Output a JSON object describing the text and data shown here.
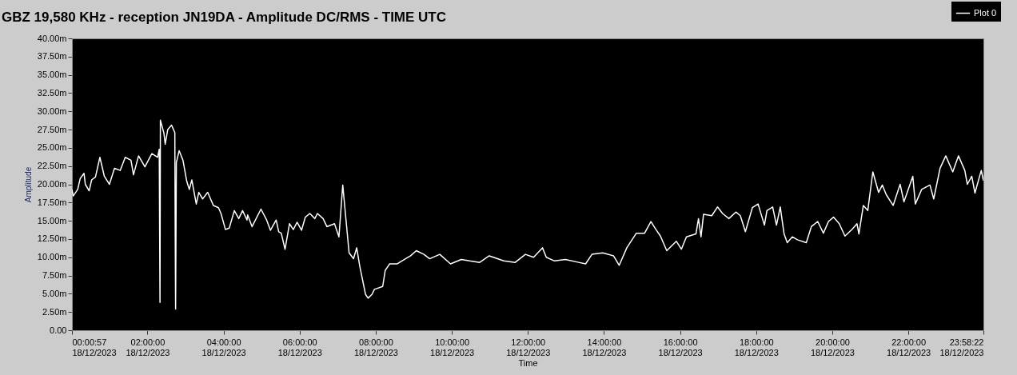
{
  "chart_data": {
    "type": "line",
    "title": "GBZ  19,580 KHz - reception JN19DA -  Amplitude DC/RMS   - TIME UTC",
    "xlabel": "Time",
    "ylabel": "Amplitude",
    "xlim": [
      "2023-12-18T00:00:57",
      "2023-12-18T23:58:22"
    ],
    "ylim": [
      0,
      40
    ],
    "xticks": [
      {
        "value": "2023-12-18T00:00:57",
        "label": "00:00:57\n18/12/2023"
      },
      {
        "value": "2023-12-18T02:00",
        "label": "02:00:00\n18/12/2023"
      },
      {
        "value": "2023-12-18T04:00",
        "label": "04:00:00\n18/12/2023"
      },
      {
        "value": "2023-12-18T06:00",
        "label": "06:00:00\n18/12/2023"
      },
      {
        "value": "2023-12-18T08:00",
        "label": "08:00:00\n18/12/2023"
      },
      {
        "value": "2023-12-18T10:00",
        "label": "10:00:00\n18/12/2023"
      },
      {
        "value": "2023-12-18T12:00",
        "label": "12:00:00\n18/12/2023"
      },
      {
        "value": "2023-12-18T14:00",
        "label": "14:00:00\n18/12/2023"
      },
      {
        "value": "2023-12-18T16:00",
        "label": "16:00:00\n18/12/2023"
      },
      {
        "value": "2023-12-18T18:00",
        "label": "18:00:00\n18/12/2023"
      },
      {
        "value": "2023-12-18T20:00",
        "label": "20:00:00\n18/12/2023"
      },
      {
        "value": "2023-12-18T22:00",
        "label": "22:00:00\n18/12/2023"
      },
      {
        "value": "2023-12-18T23:58:22",
        "label": "23:58:22\n18/12/2023"
      }
    ],
    "yticks": [
      {
        "value": 0,
        "label": "0.00"
      },
      {
        "value": 2.5,
        "label": "2.50m"
      },
      {
        "value": 5,
        "label": "5.00m"
      },
      {
        "value": 7.5,
        "label": "7.50m"
      },
      {
        "value": 10,
        "label": "10.00m"
      },
      {
        "value": 12.5,
        "label": "12.50m"
      },
      {
        "value": 15,
        "label": "15.00m"
      },
      {
        "value": 17.5,
        "label": "17.50m"
      },
      {
        "value": 20,
        "label": "20.00m"
      },
      {
        "value": 22.5,
        "label": "22.50m"
      },
      {
        "value": 25,
        "label": "25.00m"
      },
      {
        "value": 27.5,
        "label": "27.50m"
      },
      {
        "value": 30,
        "label": "30.00m"
      },
      {
        "value": 32.5,
        "label": "32.50m"
      },
      {
        "value": 35,
        "label": "35.00m"
      },
      {
        "value": 37.5,
        "label": "37.50m"
      },
      {
        "value": 40,
        "label": "40.00m"
      }
    ],
    "grid": false,
    "legend": "top right",
    "marker": "none",
    "line_style": "solid",
    "series": [
      {
        "name": "Plot 0",
        "color": "#ffffff",
        "x": [
          "2023-12-18T00:00:57",
          "2023-12-18T00:03",
          "2023-12-18T00:10",
          "2023-12-18T00:14",
          "2023-12-18T00:20",
          "2023-12-18T00:22",
          "2023-12-18T00:28",
          "2023-12-18T00:32",
          "2023-12-18T00:38",
          "2023-12-18T00:45",
          "2023-12-18T00:52",
          "2023-12-18T01:00",
          "2023-12-18T01:08",
          "2023-12-18T01:17",
          "2023-12-18T01:25",
          "2023-12-18T01:34",
          "2023-12-18T01:38",
          "2023-12-18T01:46",
          "2023-12-18T01:56",
          "2023-12-18T02:07",
          "2023-12-18T02:16",
          "2023-12-18T02:18:36",
          "2023-12-18T02:19:12",
          "2023-12-18T02:19:48",
          "2023-12-18T02:20:24",
          "2023-12-18T02:26",
          "2023-12-18T02:28",
          "2023-12-18T02:32",
          "2023-12-18T02:38",
          "2023-12-18T02:43:12",
          "2023-12-18T02:43:48",
          "2023-12-18T02:44:24",
          "2023-12-18T02:45:36",
          "2023-12-18T02:50",
          "2023-12-18T02:56",
          "2023-12-18T03:02",
          "2023-12-18T03:06",
          "2023-12-18T03:10",
          "2023-12-18T03:17",
          "2023-12-18T03:21",
          "2023-12-18T03:27",
          "2023-12-18T03:35",
          "2023-12-18T03:44",
          "2023-12-18T03:52",
          "2023-12-18T03:56",
          "2023-12-18T04:03",
          "2023-12-18T04:09",
          "2023-12-18T04:17",
          "2023-12-18T04:24",
          "2023-12-18T04:30",
          "2023-12-18T04:37",
          "2023-12-18T04:38",
          "2023-12-18T04:45",
          "2023-12-18T04:59",
          "2023-12-18T05:08",
          "2023-12-18T05:14",
          "2023-12-18T05:23",
          "2023-12-18T05:27",
          "2023-12-18T05:31",
          "2023-12-18T05:37",
          "2023-12-18T05:44",
          "2023-12-18T05:50",
          "2023-12-18T05:56",
          "2023-12-18T06:03",
          "2023-12-18T06:09",
          "2023-12-18T06:16",
          "2023-12-18T06:24",
          "2023-12-18T06:28",
          "2023-12-18T06:37",
          "2023-12-18T06:43",
          "2023-12-18T06:55",
          "2023-12-18T07:02",
          "2023-12-18T07:08",
          "2023-12-18T07:11",
          "2023-12-18T07:18",
          "2023-12-18T07:25",
          "2023-12-18T07:30",
          "2023-12-18T07:35",
          "2023-12-18T07:44",
          "2023-12-18T07:48",
          "2023-12-18T07:54",
          "2023-12-18T07:58",
          "2023-12-18T08:11",
          "2023-12-18T08:15",
          "2023-12-18T08:22",
          "2023-12-18T08:34",
          "2023-12-18T08:47",
          "2023-12-18T08:55",
          "2023-12-18T09:04",
          "2023-12-18T09:16",
          "2023-12-18T09:25",
          "2023-12-18T09:41",
          "2023-12-18T09:58",
          "2023-12-18T10:15",
          "2023-12-18T10:28",
          "2023-12-18T10:44",
          "2023-12-18T10:59",
          "2023-12-18T11:22",
          "2023-12-18T11:40",
          "2023-12-18T11:56",
          "2023-12-18T12:09",
          "2023-12-18T12:23",
          "2023-12-18T12:29",
          "2023-12-18T12:42",
          "2023-12-18T12:59",
          "2023-12-18T13:20",
          "2023-12-18T13:31",
          "2023-12-18T13:41",
          "2023-12-18T13:58",
          "2023-12-18T14:15",
          "2023-12-18T14:24",
          "2023-12-18T14:36",
          "2023-12-18T14:51",
          "2023-12-18T15:04",
          "2023-12-18T15:14",
          "2023-12-18T15:22",
          "2023-12-18T15:29",
          "2023-12-18T15:39",
          "2023-12-18T15:54",
          "2023-12-18T16:02",
          "2023-12-18T16:10",
          "2023-12-18T16:25",
          "2023-12-18T16:29",
          "2023-12-18T16:33",
          "2023-12-18T16:37",
          "2023-12-18T16:50",
          "2023-12-18T16:59",
          "2023-12-18T17:07",
          "2023-12-18T17:17",
          "2023-12-18T17:28",
          "2023-12-18T17:35",
          "2023-12-18T17:43",
          "2023-12-18T17:54",
          "2023-12-18T18:03",
          "2023-12-18T18:13",
          "2023-12-18T18:17",
          "2023-12-18T18:26",
          "2023-12-18T18:32",
          "2023-12-18T18:38",
          "2023-12-18T18:44",
          "2023-12-18T18:49",
          "2023-12-18T18:57",
          "2023-12-18T19:05",
          "2023-12-18T19:19",
          "2023-12-18T19:27",
          "2023-12-18T19:37",
          "2023-12-18T19:46",
          "2023-12-18T19:54",
          "2023-12-18T20:02",
          "2023-12-18T20:11",
          "2023-12-18T20:20",
          "2023-12-18T20:31",
          "2023-12-18T20:39",
          "2023-12-18T20:42",
          "2023-12-18T20:49",
          "2023-12-18T20:56",
          "2023-12-18T21:04",
          "2023-12-18T21:13",
          "2023-12-18T21:19",
          "2023-12-18T21:25",
          "2023-12-18T21:36",
          "2023-12-18T21:47",
          "2023-12-18T21:53",
          "2023-12-18T22:07",
          "2023-12-18T22:11",
          "2023-12-18T22:21",
          "2023-12-18T22:34",
          "2023-12-18T22:40",
          "2023-12-18T22:50",
          "2023-12-18T22:59",
          "2023-12-18T23:10",
          "2023-12-18T23:19",
          "2023-12-18T23:29",
          "2023-12-18T23:33",
          "2023-12-18T23:40",
          "2023-12-18T23:45",
          "2023-12-18T23:52",
          "2023-12-18T23:55",
          "2023-12-18T23:58:20"
        ],
        "values": [
          19.3,
          18.4,
          19.3,
          20.8,
          21.5,
          20.0,
          19.1,
          20.6,
          21.0,
          23.7,
          21.1,
          20.0,
          22.2,
          21.9,
          23.7,
          23.3,
          21.3,
          23.9,
          22.4,
          24.2,
          23.7,
          24.8,
          13.8,
          3.8,
          28.8,
          27.0,
          25.5,
          27.5,
          28.1,
          27.1,
          12.9,
          2.9,
          23.0,
          24.6,
          23.3,
          20.4,
          19.3,
          20.6,
          17.3,
          18.9,
          18.0,
          18.9,
          17.1,
          16.8,
          16.0,
          13.8,
          14.0,
          16.4,
          15.3,
          16.4,
          15.1,
          15.8,
          14.2,
          16.6,
          15.1,
          13.7,
          15.1,
          13.5,
          13.3,
          11.1,
          14.6,
          13.8,
          14.8,
          13.7,
          15.5,
          16.0,
          15.3,
          16.0,
          15.3,
          14.2,
          14.6,
          12.8,
          19.9,
          17.1,
          10.6,
          9.8,
          11.3,
          8.7,
          4.9,
          4.4,
          4.9,
          5.6,
          6.0,
          8.2,
          9.1,
          9.1,
          9.8,
          10.2,
          10.9,
          10.4,
          9.8,
          10.4,
          9.1,
          9.7,
          9.5,
          9.3,
          10.2,
          9.5,
          9.3,
          10.4,
          10.0,
          11.3,
          10.0,
          9.5,
          9.7,
          9.3,
          9.1,
          10.4,
          10.6,
          10.2,
          8.9,
          11.3,
          13.3,
          13.3,
          14.9,
          13.8,
          12.9,
          10.9,
          12.2,
          11.1,
          12.8,
          13.2,
          15.3,
          12.8,
          15.9,
          15.7,
          16.9,
          16.0,
          15.3,
          16.2,
          15.7,
          13.5,
          16.8,
          17.3,
          14.4,
          16.4,
          16.9,
          14.4,
          16.9,
          13.2,
          12.0,
          12.8,
          12.4,
          12.0,
          14.2,
          14.9,
          13.3,
          14.9,
          15.5,
          14.6,
          12.9,
          13.8,
          14.6,
          13.2,
          17.1,
          16.4,
          21.7,
          18.9,
          19.9,
          18.6,
          17.1,
          20.0,
          17.6,
          21.1,
          17.3,
          19.3,
          19.9,
          18.0,
          22.2,
          23.9,
          21.7,
          23.9,
          21.9,
          20.0,
          21.1,
          18.8,
          21.0,
          21.9,
          20.5
        ]
      }
    ]
  }
}
